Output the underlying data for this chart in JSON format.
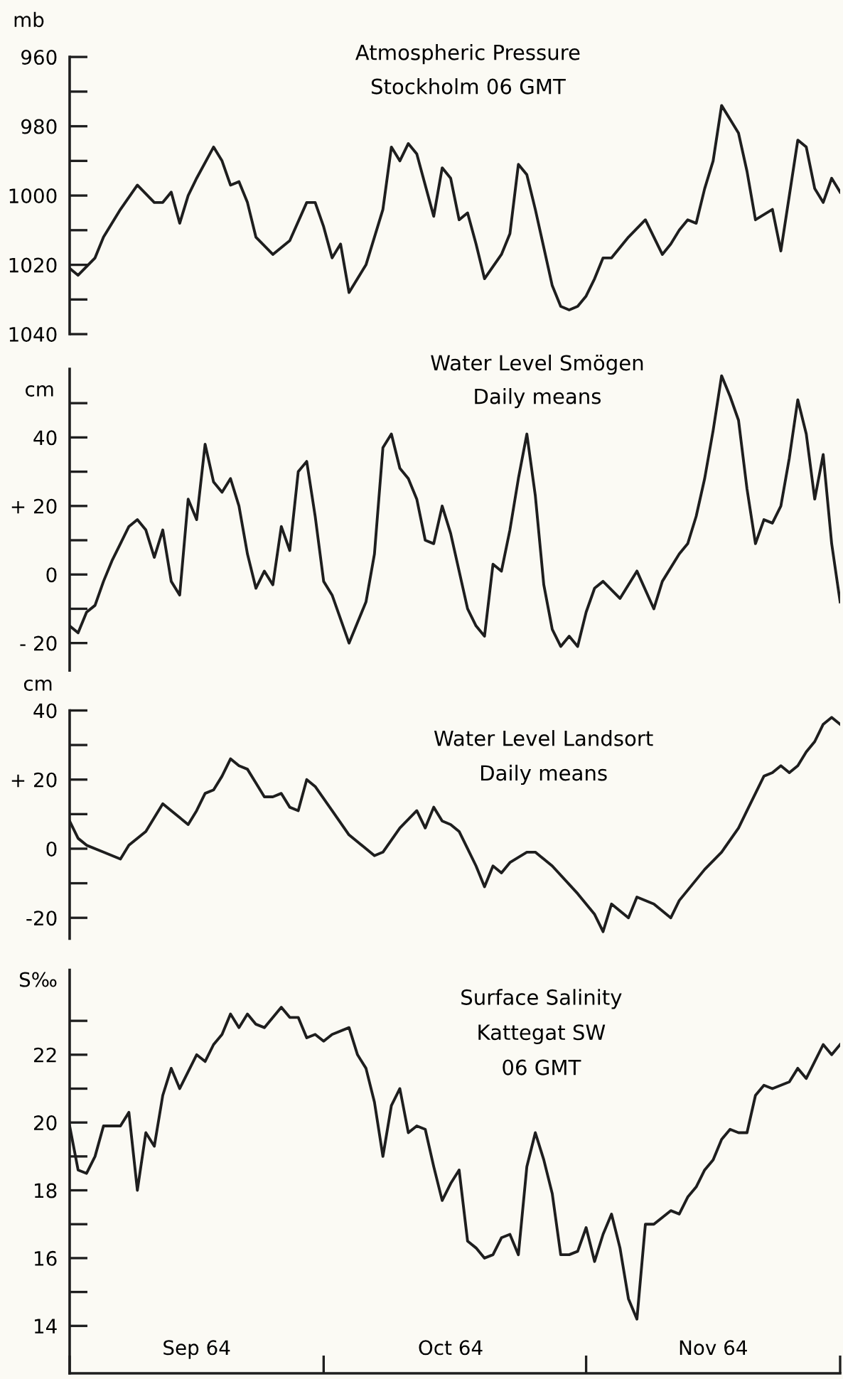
{
  "chart_data": [
    {
      "type": "line",
      "title": "Atmospheric Pressure",
      "subtitle": "Stockholm 06 GMT",
      "ylabel": "mb",
      "tick_labels": "y",
      "x": [
        "1964-09-01",
        "1964-09-02",
        "1964-09-04",
        "1964-09-05",
        "1964-09-07",
        "1964-09-09",
        "1964-09-11",
        "1964-09-12",
        "1964-09-13",
        "1964-09-14",
        "1964-09-15",
        "1964-09-16",
        "1964-09-18",
        "1964-09-19",
        "1964-09-20",
        "1964-09-21",
        "1964-09-22",
        "1964-09-23",
        "1964-09-25",
        "1964-09-27",
        "1964-09-29",
        "1964-09-30",
        "1964-10-01",
        "1964-10-02",
        "1964-10-03",
        "1964-10-04",
        "1964-10-06",
        "1964-10-08",
        "1964-10-09",
        "1964-10-10",
        "1964-10-11",
        "1964-10-12",
        "1964-10-14",
        "1964-10-15",
        "1964-10-16",
        "1964-10-17",
        "1964-10-18",
        "1964-10-19",
        "1964-10-20",
        "1964-10-22",
        "1964-10-23",
        "1964-10-24",
        "1964-10-25",
        "1964-10-26",
        "1964-10-28",
        "1964-10-29",
        "1964-10-30",
        "1964-10-31",
        "1964-11-01",
        "1964-11-02",
        "1964-11-03",
        "1964-11-04",
        "1964-11-06",
        "1964-11-08",
        "1964-11-10",
        "1964-11-11",
        "1964-11-12",
        "1964-11-13",
        "1964-11-14",
        "1964-11-15",
        "1964-11-16",
        "1964-11-17",
        "1964-11-18",
        "1964-11-19",
        "1964-11-20",
        "1964-11-21",
        "1964-11-23",
        "1964-11-24",
        "1964-11-25",
        "1964-11-26",
        "1964-11-27",
        "1964-11-28",
        "1964-11-29",
        "1964-11-30",
        "1964-12-01"
      ],
      "series": [
        {
          "color": "#1e1e1e",
          "values": [
            1021,
            1023,
            1018,
            1012,
            1004,
            997,
            1002,
            1002,
            999,
            1008,
            1000,
            995,
            986,
            990,
            997,
            996,
            1002,
            1012,
            1017,
            1013,
            1002,
            1002,
            1009,
            1018,
            1014,
            1028,
            1020,
            1004,
            986,
            990,
            985,
            988,
            1006,
            992,
            995,
            1007,
            1005,
            1014,
            1024,
            1017,
            1011,
            991,
            994,
            1004,
            1026,
            1032,
            1033,
            1032,
            1029,
            1024,
            1018,
            1018,
            1012,
            1007,
            1017,
            1014,
            1010,
            1007,
            1008,
            998,
            990,
            974,
            978,
            982,
            993,
            1007,
            1004,
            1016,
            1000,
            984,
            986,
            998,
            1002,
            995,
            999
          ]
        }
      ],
      "xlim": [
        "1964-09-01",
        "1964-12-01"
      ],
      "ylim": [
        1040,
        960
      ],
      "yticks": [
        960,
        {
          "value": 970,
          "label": null
        },
        980,
        {
          "value": 990,
          "label": null
        },
        1000,
        {
          "value": 1010,
          "label": null
        },
        1020,
        {
          "value": 1030,
          "label": null
        },
        1040
      ]
    },
    {
      "type": "line",
      "title": "Water Level Smögen",
      "subtitle": "Daily means",
      "ylabel": "cm",
      "tick_labels": "y",
      "x": [
        "1964-09-01",
        "1964-09-02",
        "1964-09-03",
        "1964-09-04",
        "1964-09-05",
        "1964-09-06",
        "1964-09-07",
        "1964-09-08",
        "1964-09-09",
        "1964-09-10",
        "1964-09-11",
        "1964-09-12",
        "1964-09-13",
        "1964-09-14",
        "1964-09-15",
        "1964-09-16",
        "1964-09-17",
        "1964-09-18",
        "1964-09-19",
        "1964-09-20",
        "1964-09-21",
        "1964-09-22",
        "1964-09-23",
        "1964-09-24",
        "1964-09-25",
        "1964-09-26",
        "1964-09-27",
        "1964-09-28",
        "1964-09-29",
        "1964-09-30",
        "1964-10-01",
        "1964-10-02",
        "1964-10-04",
        "1964-10-06",
        "1964-10-07",
        "1964-10-08",
        "1964-10-09",
        "1964-10-10",
        "1964-10-11",
        "1964-10-12",
        "1964-10-13",
        "1964-10-14",
        "1964-10-15",
        "1964-10-16",
        "1964-10-17",
        "1964-10-18",
        "1964-10-19",
        "1964-10-20",
        "1964-10-21",
        "1964-10-22",
        "1964-10-23",
        "1964-10-24",
        "1964-10-25",
        "1964-10-26",
        "1964-10-27",
        "1964-10-28",
        "1964-10-29",
        "1964-10-30",
        "1964-10-31",
        "1964-11-01",
        "1964-11-02",
        "1964-11-03",
        "1964-11-05",
        "1964-11-07",
        "1964-11-09",
        "1964-11-10",
        "1964-11-12",
        "1964-11-13",
        "1964-11-14",
        "1964-11-15",
        "1964-11-16",
        "1964-11-17",
        "1964-11-18",
        "1964-11-19",
        "1964-11-20",
        "1964-11-21",
        "1964-11-22",
        "1964-11-23",
        "1964-11-24",
        "1964-11-25",
        "1964-11-26",
        "1964-11-27",
        "1964-11-28",
        "1964-11-29",
        "1964-11-30",
        "1964-12-01"
      ],
      "series": [
        {
          "color": "#1e1e1e",
          "values": [
            -15,
            -17,
            -11,
            -9,
            -2,
            4,
            9,
            14,
            16,
            13,
            5,
            13,
            -2,
            -6,
            22,
            16,
            38,
            27,
            24,
            28,
            20,
            6,
            -4,
            1,
            -3,
            14,
            7,
            30,
            33,
            17,
            -2,
            -6,
            -20,
            -8,
            6,
            37,
            41,
            31,
            28,
            22,
            10,
            9,
            20,
            12,
            1,
            -10,
            -15,
            -18,
            3,
            1,
            13,
            28,
            41,
            23,
            -3,
            -16,
            -21,
            -18,
            -21,
            -11,
            -4,
            -2,
            -7,
            1,
            -10,
            -2,
            6,
            9,
            17,
            28,
            42,
            58,
            52,
            45,
            25,
            9,
            16,
            15,
            20,
            34,
            51,
            41,
            22,
            35,
            9,
            -8
          ]
        }
      ],
      "xlim": [
        "1964-09-01",
        "1964-12-01"
      ],
      "ylim": [
        -28,
        60
      ],
      "yticks": [
        {
          "value": 50,
          "label": null
        },
        40,
        {
          "value": 30,
          "label": null
        },
        {
          "value": 20,
          "label": "+ 20"
        },
        {
          "value": 10,
          "label": null
        },
        0,
        {
          "value": -10,
          "label": null
        },
        {
          "value": -20,
          "label": "- 20"
        }
      ]
    },
    {
      "type": "line",
      "title": "Water Level Landsort",
      "subtitle": "Daily means",
      "ylabel": "cm",
      "tick_labels": "y",
      "x": [
        "1964-09-01",
        "1964-09-02",
        "1964-09-03",
        "1964-09-05",
        "1964-09-07",
        "1964-09-08",
        "1964-09-10",
        "1964-09-11",
        "1964-09-12",
        "1964-09-13",
        "1964-09-15",
        "1964-09-16",
        "1964-09-17",
        "1964-09-18",
        "1964-09-19",
        "1964-09-20",
        "1964-09-21",
        "1964-09-22",
        "1964-09-23",
        "1964-09-24",
        "1964-09-25",
        "1964-09-26",
        "1964-09-27",
        "1964-09-28",
        "1964-09-29",
        "1964-09-30",
        "1964-10-02",
        "1964-10-04",
        "1964-10-07",
        "1964-10-08",
        "1964-10-10",
        "1964-10-12",
        "1964-10-13",
        "1964-10-14",
        "1964-10-15",
        "1964-10-16",
        "1964-10-17",
        "1964-10-18",
        "1964-10-19",
        "1964-10-20",
        "1964-10-21",
        "1964-10-22",
        "1964-10-23",
        "1964-10-25",
        "1964-10-26",
        "1964-10-28",
        "1964-10-31",
        "1964-11-02",
        "1964-11-03",
        "1964-11-04",
        "1964-11-06",
        "1964-11-07",
        "1964-11-09",
        "1964-11-11",
        "1964-11-12",
        "1964-11-15",
        "1964-11-17",
        "1964-11-19",
        "1964-11-20",
        "1964-11-22",
        "1964-11-23",
        "1964-11-24",
        "1964-11-25",
        "1964-11-26",
        "1964-11-27",
        "1964-11-28",
        "1964-11-29",
        "1964-11-30",
        "1964-12-01"
      ],
      "series": [
        {
          "color": "#1e1e1e",
          "values": [
            8,
            3,
            1,
            -1,
            -3,
            1,
            5,
            9,
            13,
            11,
            7,
            11,
            16,
            17,
            21,
            26,
            24,
            23,
            19,
            15,
            15,
            16,
            12,
            11,
            20,
            18,
            11,
            4,
            -2,
            -1,
            6,
            11,
            6,
            12,
            8,
            7,
            5,
            0,
            -5,
            -11,
            -5,
            -7,
            -4,
            -1,
            -1,
            -5,
            -13,
            -19,
            -24,
            -16,
            -20,
            -14,
            -16,
            -20,
            -15,
            -6,
            -1,
            6,
            11,
            21,
            22,
            24,
            22,
            24,
            28,
            31,
            36,
            38,
            36
          ]
        }
      ],
      "xlim": [
        "1964-09-01",
        "1964-12-01"
      ],
      "ylim": [
        -26,
        40
      ],
      "yticks": [
        40,
        {
          "value": 30,
          "label": null
        },
        {
          "value": 20,
          "label": "+ 20"
        },
        {
          "value": 10,
          "label": null
        },
        0,
        {
          "value": -10,
          "label": null
        },
        {
          "value": -20,
          "label": "-20"
        }
      ]
    },
    {
      "type": "line",
      "title": "Surface Salinity",
      "subtitle": "Kattegat SW",
      "annotations": [
        "06 GMT"
      ],
      "ylabel": "S‰",
      "x": [
        "1964-09-01",
        "1964-09-02",
        "1964-09-03",
        "1964-09-04",
        "1964-09-05",
        "1964-09-07",
        "1964-09-08",
        "1964-09-09",
        "1964-09-10",
        "1964-09-11",
        "1964-09-12",
        "1964-09-13",
        "1964-09-14",
        "1964-09-16",
        "1964-09-17",
        "1964-09-18",
        "1964-09-19",
        "1964-09-20",
        "1964-09-21",
        "1964-09-22",
        "1964-09-23",
        "1964-09-24",
        "1964-09-26",
        "1964-09-27",
        "1964-09-28",
        "1964-09-29",
        "1964-09-30",
        "1964-10-01",
        "1964-10-02",
        "1964-10-04",
        "1964-10-05",
        "1964-10-06",
        "1964-10-07",
        "1964-10-08",
        "1964-10-09",
        "1964-10-10",
        "1964-10-11",
        "1964-10-12",
        "1964-10-13",
        "1964-10-14",
        "1964-10-15",
        "1964-10-16",
        "1964-10-17",
        "1964-10-18",
        "1964-10-19",
        "1964-10-20",
        "1964-10-21",
        "1964-10-22",
        "1964-10-23",
        "1964-10-24",
        "1964-10-25",
        "1964-10-26",
        "1964-10-27",
        "1964-10-28",
        "1964-10-29",
        "1964-10-30",
        "1964-10-31",
        "1964-11-01",
        "1964-11-02",
        "1964-11-03",
        "1964-11-04",
        "1964-11-05",
        "1964-11-06",
        "1964-11-07",
        "1964-11-08",
        "1964-11-09",
        "1964-11-10",
        "1964-11-11",
        "1964-11-12",
        "1964-11-13",
        "1964-11-14",
        "1964-11-15",
        "1964-11-16",
        "1964-11-17",
        "1964-11-18",
        "1964-11-19",
        "1964-11-20",
        "1964-11-21",
        "1964-11-22",
        "1964-11-23",
        "1964-11-24",
        "1964-11-25",
        "1964-11-26",
        "1964-11-27",
        "1964-11-28",
        "1964-11-29",
        "1964-11-30",
        "1964-12-01"
      ],
      "series": [
        {
          "color": "#1e1e1e",
          "values": [
            19.9,
            18.6,
            18.5,
            19.0,
            19.9,
            19.9,
            20.3,
            18.0,
            19.7,
            19.3,
            20.8,
            21.6,
            21.0,
            22.0,
            21.8,
            22.3,
            22.6,
            23.2,
            22.8,
            23.2,
            22.9,
            22.8,
            23.4,
            23.1,
            23.1,
            22.5,
            22.6,
            22.4,
            22.6,
            22.8,
            22.0,
            21.6,
            20.6,
            19.0,
            20.5,
            21.0,
            19.7,
            19.9,
            19.8,
            18.7,
            17.7,
            18.2,
            18.6,
            16.5,
            16.3,
            16.0,
            16.1,
            16.6,
            16.7,
            16.1,
            18.7,
            19.7,
            18.9,
            17.9,
            16.1,
            16.1,
            16.2,
            16.9,
            15.9,
            16.7,
            17.3,
            16.3,
            14.8,
            14.2,
            17.0,
            17.0,
            17.2,
            17.4,
            17.3,
            17.8,
            18.1,
            18.6,
            18.9,
            19.5,
            19.8,
            19.7,
            19.7,
            20.8,
            21.1,
            21.0,
            21.1,
            21.2,
            21.6,
            21.3,
            21.8,
            22.3,
            22.0,
            22.3
          ]
        }
      ],
      "xlim": [
        "1964-09-01",
        "1964-12-01"
      ],
      "ylim": [
        12.6,
        24.5
      ],
      "xticks": [
        {
          "value": "1964-09-01",
          "label": null
        },
        {
          "value": "1964-09-16",
          "label": "Sep 64"
        },
        {
          "value": "1964-10-01",
          "label": null
        },
        {
          "value": "1964-10-16",
          "label": "Oct 64"
        },
        {
          "value": "1964-11-01",
          "label": null
        },
        {
          "value": "1964-11-16",
          "label": "Nov 64"
        },
        {
          "value": "1964-12-01",
          "label": null
        }
      ],
      "yticks": [
        14,
        {
          "value": 15,
          "label": null
        },
        16,
        {
          "value": 17,
          "label": null
        },
        18,
        {
          "value": 19,
          "label": null
        },
        20,
        {
          "value": 21,
          "label": null
        },
        22,
        {
          "value": 23,
          "label": null
        }
      ]
    }
  ]
}
